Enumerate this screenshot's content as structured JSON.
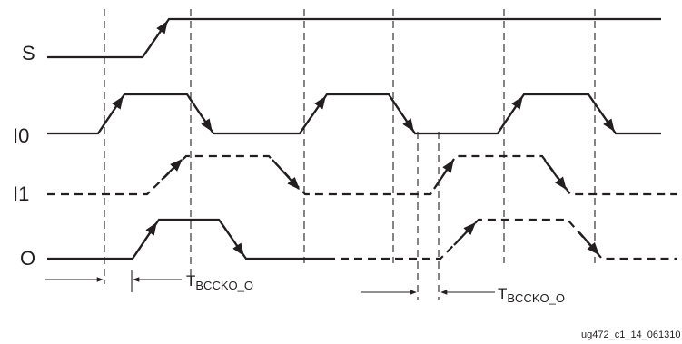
{
  "signals": {
    "s": "S",
    "i0": "I0",
    "i1": "I1",
    "o": "O"
  },
  "timings": {
    "first": {
      "main": "T",
      "sub": "BCCKO_O"
    },
    "second": {
      "main": "T",
      "sub": "BCCKO_O"
    }
  },
  "figure_id": "ug472_c1_14_061310"
}
